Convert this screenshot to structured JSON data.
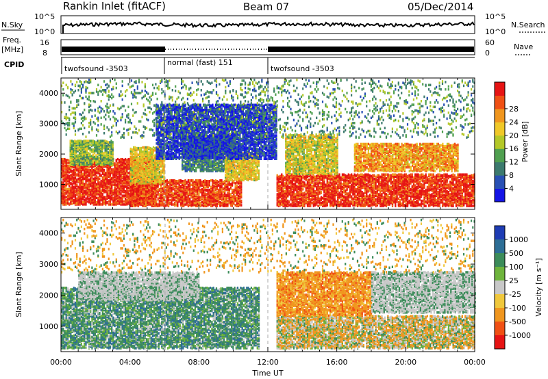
{
  "header": {
    "station": "Rankin Inlet (fitACF)",
    "beam": "Beam 07",
    "date": "05/Dec/2014"
  },
  "status_panel": {
    "nsky_label": "N.Sky",
    "nsky_ticks": [
      "10^5",
      "10^0"
    ],
    "nsearch_label": "N.Search",
    "nsearch_ticks": [
      "10^5",
      "10^0"
    ],
    "freq_label": "Freq.",
    "freq_unit": "[MHz]",
    "freq_ticks": [
      "16",
      "8"
    ],
    "nave_label": "Nave",
    "nave_ticks": [
      "60",
      "0"
    ],
    "cpid_label": "CPID",
    "cpid_segments": [
      {
        "label": "twofsound -3503",
        "start": "00:00",
        "end": "06:00"
      },
      {
        "label": "normal (fast) 151",
        "start": "06:00",
        "end": "12:00"
      },
      {
        "label": "twofsound -3503",
        "start": "12:00",
        "end": "24:00"
      }
    ]
  },
  "chart_data": [
    {
      "type": "heatmap",
      "name": "power-panel",
      "ylabel": "Slant Range [km]",
      "xlabel": "",
      "ylim": [
        180,
        4500
      ],
      "xlim": [
        "00:00",
        "24:00"
      ],
      "y_ticks": [
        1000,
        2000,
        3000,
        4000
      ],
      "colorbar": {
        "label": "Power [dB]",
        "ticks": [
          "4",
          "8",
          "12",
          "16",
          "20",
          "24",
          "28"
        ],
        "range": [
          0,
          30
        ],
        "colors": [
          "#1414e6",
          "#2850b4",
          "#3c7a6e",
          "#50a050",
          "#b4c828",
          "#f0c828",
          "#f0961e",
          "#f05014",
          "#e61414"
        ]
      },
      "regions": [
        {
          "t0": 0.0,
          "t1": 5.5,
          "r0": 300,
          "r1": 1800,
          "level": 0.92
        },
        {
          "t0": 4.0,
          "t1": 10.5,
          "r0": 250,
          "r1": 1100,
          "level": 0.88
        },
        {
          "t0": 4.0,
          "t1": 6.0,
          "r0": 1000,
          "r1": 2200,
          "level": 0.6
        },
        {
          "t0": 0.5,
          "t1": 3.0,
          "r0": 1600,
          "r1": 2400,
          "level": 0.45
        },
        {
          "t0": 7.0,
          "t1": 10.0,
          "r0": 1400,
          "r1": 2600,
          "level": 0.3
        },
        {
          "t0": 9.5,
          "t1": 11.5,
          "r0": 1100,
          "r1": 2000,
          "level": 0.6
        },
        {
          "t0": 12.5,
          "t1": 24.0,
          "r0": 250,
          "r1": 1300,
          "level": 0.9
        },
        {
          "t0": 13.0,
          "t1": 16.0,
          "r0": 1300,
          "r1": 2600,
          "level": 0.55
        },
        {
          "t0": 17.0,
          "t1": 23.0,
          "r0": 1400,
          "r1": 2300,
          "level": 0.7
        },
        {
          "t0": 5.5,
          "t1": 12.5,
          "r0": 1800,
          "r1": 3600,
          "level": 0.12
        },
        {
          "t0": 0.0,
          "t1": 24.0,
          "r0": 2500,
          "r1": 4400,
          "level": 0.35
        }
      ]
    },
    {
      "type": "heatmap",
      "name": "velocity-panel",
      "ylabel": "Slant Range [km]",
      "xlabel": "Time UT",
      "ylim": [
        180,
        4500
      ],
      "xlim": [
        "00:00",
        "24:00"
      ],
      "x_ticks": [
        "00:00",
        "04:00",
        "08:00",
        "12:00",
        "16:00",
        "20:00",
        "00:00"
      ],
      "y_ticks": [
        1000,
        2000,
        3000,
        4000
      ],
      "colorbar": {
        "label": "Velocity [m s⁻¹]",
        "ticks": [
          "1000",
          "500",
          "100",
          "25",
          "-25",
          "-100",
          "-500",
          "-1000"
        ],
        "colors": [
          "#1e3cb4",
          "#2d6e96",
          "#3c8c5a",
          "#6eb43c",
          "#c8c8c8",
          "#f0c83c",
          "#f0961e",
          "#f05014",
          "#e61414"
        ]
      },
      "regions": [
        {
          "t0": 0.0,
          "t1": 11.5,
          "r0": 250,
          "r1": 2200,
          "class": "toward"
        },
        {
          "t0": 1.0,
          "t1": 8.0,
          "r0": 1800,
          "r1": 2700,
          "class": "ground"
        },
        {
          "t0": 12.5,
          "t1": 24.0,
          "r0": 250,
          "r1": 1300,
          "class": "mixed"
        },
        {
          "t0": 12.5,
          "t1": 18.0,
          "r0": 1300,
          "r1": 2700,
          "class": "away"
        },
        {
          "t0": 18.0,
          "t1": 24.0,
          "r0": 1400,
          "r1": 2700,
          "class": "ground"
        },
        {
          "t0": 0.0,
          "t1": 24.0,
          "r0": 2700,
          "r1": 4400,
          "class": "away-sparse"
        }
      ]
    }
  ]
}
